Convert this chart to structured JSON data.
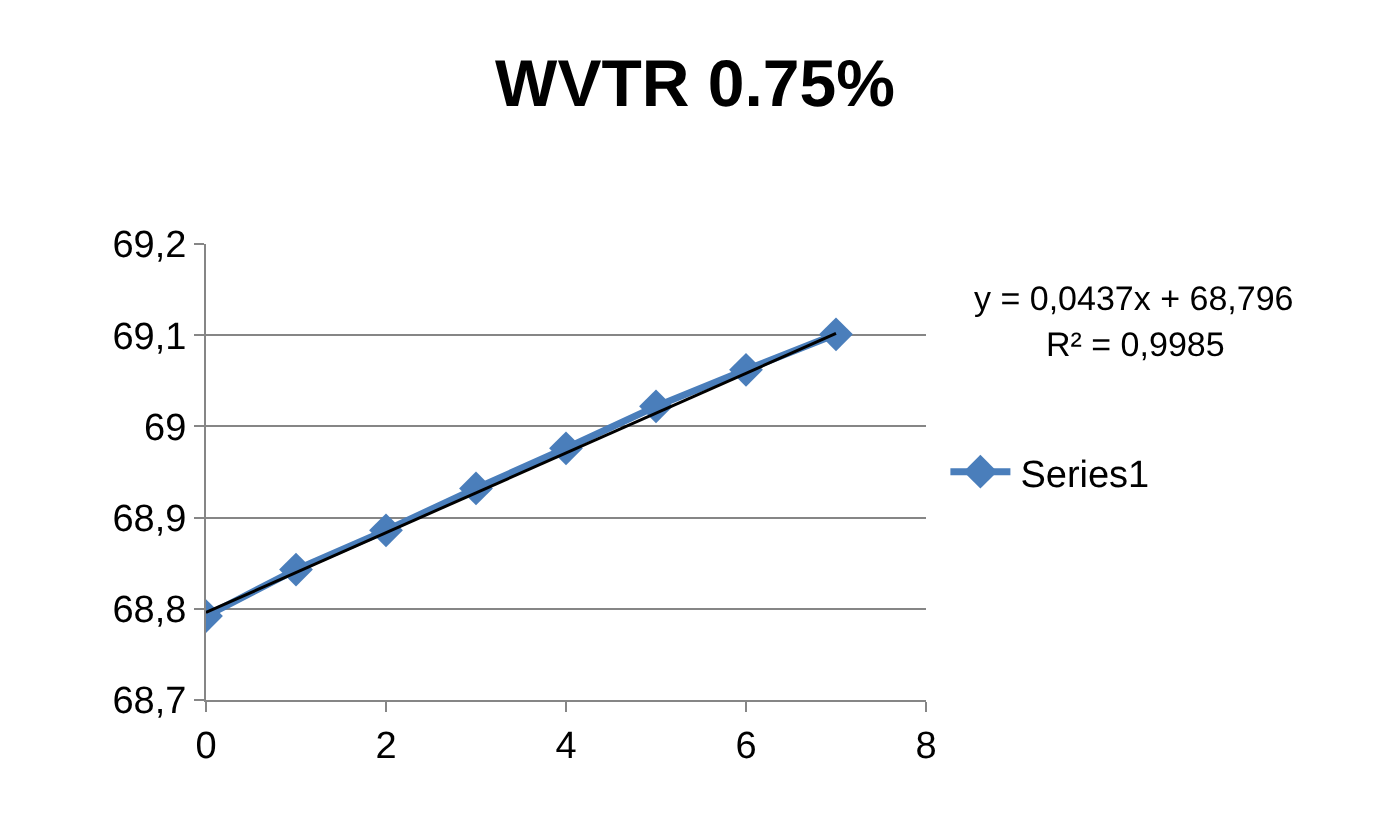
{
  "chart_data": {
    "type": "line",
    "title": "WVTR 0.75%",
    "series": [
      {
        "name": "Series1",
        "color": "#4a7ebb",
        "x": [
          0,
          1,
          2,
          3,
          4,
          5,
          6,
          7
        ],
        "values": [
          68.792,
          68.843,
          68.886,
          68.932,
          68.976,
          69.022,
          69.062,
          69.101
        ],
        "marker": "diamond"
      },
      {
        "type": "line",
        "color": "#000000",
        "x": [
          0,
          7
        ],
        "values": [
          68.796,
          69.102
        ],
        "marker": "none"
      }
    ],
    "xlim": [
      0,
      8
    ],
    "xticks": [
      0,
      2,
      4,
      6,
      8
    ],
    "ylim": [
      68.7,
      69.2
    ],
    "yticks": [
      {
        "value": 68.7,
        "label": "68,7"
      },
      {
        "value": 68.8,
        "label": "68,8"
      },
      {
        "value": 68.9,
        "label": "68,9"
      },
      {
        "value": 69,
        "label": "69"
      },
      {
        "value": 69.1,
        "label": "69,1"
      },
      {
        "value": 69.2,
        "label": "69,2"
      }
    ],
    "grid": "y",
    "legend": "right",
    "annotations": [
      "y = 0,0437x + 68,796",
      "R² = 0,9985"
    ]
  }
}
